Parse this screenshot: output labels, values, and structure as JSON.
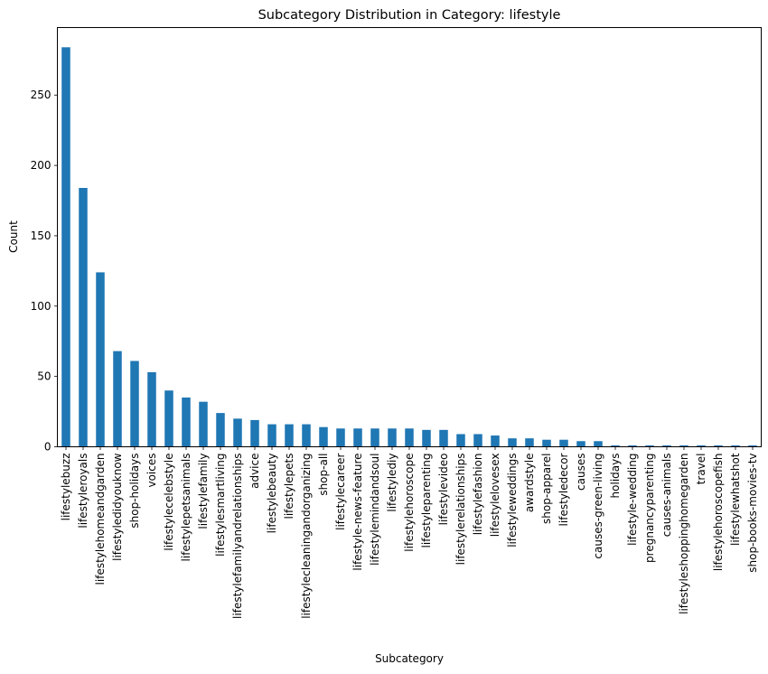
{
  "chart_data": {
    "type": "bar",
    "title": "Subcategory Distribution in Category: lifestyle",
    "xlabel": "Subcategory",
    "ylabel": "Count",
    "ylim": [
      0,
      298
    ],
    "yticks": [
      0,
      50,
      100,
      150,
      200,
      250
    ],
    "grid": false,
    "bar_color": "#1f77b4",
    "categories": [
      "lifestylebuzz",
      "lifestyleroyals",
      "lifestylehomeandgarden",
      "lifestyledidyouknow",
      "shop-holidays",
      "voices",
      "lifestylecelebstyle",
      "lifestylepetsanimals",
      "lifestylefamily",
      "lifestylesmartliving",
      "lifestylefamilyandrelationships",
      "advice",
      "lifestylebeauty",
      "lifestylepets",
      "lifestylecleaningandorganizing",
      "shop-all",
      "lifestylecareer",
      "lifestyle-news-feature",
      "lifestylemindandsoul",
      "lifestylediy",
      "lifestylehoroscope",
      "lifestyleparenting",
      "lifestylevideo",
      "lifestylerelationships",
      "lifestylefashion",
      "lifestylelovesex",
      "lifestyleweddings",
      "awardstyle",
      "shop-apparel",
      "lifestyledecor",
      "causes",
      "causes-green-living",
      "holidays",
      "lifestyle-wedding",
      "pregnancyparenting",
      "causes-animals",
      "lifestyleshoppinghomegarden",
      "travel",
      "lifestylehoroscopefish",
      "lifestylewhatshot",
      "shop-books-movies-tv"
    ],
    "values": [
      284,
      184,
      124,
      68,
      61,
      53,
      40,
      35,
      32,
      24,
      20,
      19,
      16,
      16,
      16,
      14,
      13,
      13,
      13,
      13,
      13,
      12,
      12,
      9,
      9,
      8,
      6,
      6,
      5,
      5,
      4,
      4,
      1,
      1,
      1,
      1,
      1,
      1,
      1,
      1,
      1
    ]
  }
}
